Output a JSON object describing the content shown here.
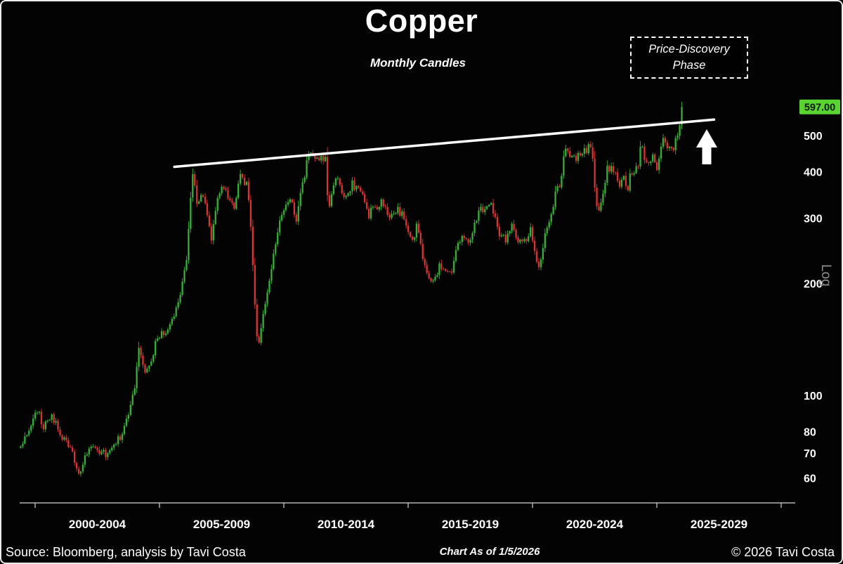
{
  "header": {
    "title": "Copper",
    "subtitle": "Monthly Candles",
    "annotation": {
      "line1": "Price-Discovery",
      "line2": "Phase"
    }
  },
  "footer": {
    "source": "Source: Bloomberg, analysis by Tavi Costa",
    "as_of": "Chart As of 1/5/2026",
    "copyright": "© 2026 Tavi Costa"
  },
  "chart_data": {
    "type": "candlestick",
    "title": "Copper",
    "subtitle": "Monthly Candles",
    "interval": "monthly",
    "scale": "log",
    "start_year": 1999.42,
    "end_year": 2026.0,
    "last_price": 597.0,
    "last_price_label": "597.00",
    "y_axis": {
      "label": "Log",
      "ticks": [
        500,
        400,
        300,
        200,
        100,
        80,
        70,
        60
      ]
    },
    "x_axis": {
      "labels": [
        "2000-2004",
        "2005-2009",
        "2010-2014",
        "2015-2019",
        "2020-2024",
        "2025-2029"
      ],
      "label_center_years": [
        2002.5,
        2007.5,
        2012.5,
        2017.5,
        2022.5,
        2027.5
      ],
      "tick_years": [
        2000,
        2005,
        2010,
        2015,
        2020,
        2025,
        2030
      ]
    },
    "trendline": {
      "from_year": 2005.6,
      "from_price": 412,
      "to_year": 2027.3,
      "to_price": 552,
      "color": "#ffffff"
    },
    "colors": {
      "up": "#35b135",
      "down": "#d93434",
      "last_price_bg": "#59d431",
      "trendline": "#ffffff"
    },
    "monthly_anchors": [
      [
        1999.42,
        73
      ],
      [
        1999.58,
        79
      ],
      [
        1999.83,
        83
      ],
      [
        2000.08,
        91
      ],
      [
        2000.33,
        83
      ],
      [
        2000.58,
        88
      ],
      [
        2000.83,
        85
      ],
      [
        2001.08,
        78
      ],
      [
        2001.33,
        74
      ],
      [
        2001.58,
        67
      ],
      [
        2001.83,
        61
      ],
      [
        2002.08,
        70
      ],
      [
        2002.33,
        73
      ],
      [
        2002.58,
        68
      ],
      [
        2002.83,
        70
      ],
      [
        2003.08,
        74
      ],
      [
        2003.33,
        76
      ],
      [
        2003.58,
        81
      ],
      [
        2003.83,
        92
      ],
      [
        2004.0,
        107
      ],
      [
        2004.17,
        133
      ],
      [
        2004.42,
        118
      ],
      [
        2004.67,
        126
      ],
      [
        2004.92,
        142
      ],
      [
        2005.17,
        148
      ],
      [
        2005.42,
        155
      ],
      [
        2005.67,
        168
      ],
      [
        2005.92,
        204
      ],
      [
        2006.08,
        228
      ],
      [
        2006.33,
        408
      ],
      [
        2006.5,
        322
      ],
      [
        2006.75,
        352
      ],
      [
        2006.92,
        305
      ],
      [
        2007.08,
        262
      ],
      [
        2007.33,
        348
      ],
      [
        2007.58,
        362
      ],
      [
        2007.83,
        326
      ],
      [
        2008.0,
        318
      ],
      [
        2008.25,
        394
      ],
      [
        2008.5,
        368
      ],
      [
        2008.67,
        292
      ],
      [
        2008.83,
        178
      ],
      [
        2008.95,
        131
      ],
      [
        2009.08,
        150
      ],
      [
        2009.33,
        188
      ],
      [
        2009.58,
        238
      ],
      [
        2009.83,
        298
      ],
      [
        2010.08,
        334
      ],
      [
        2010.25,
        342
      ],
      [
        2010.5,
        296
      ],
      [
        2010.75,
        367
      ],
      [
        2010.92,
        425
      ],
      [
        2011.08,
        448
      ],
      [
        2011.17,
        456
      ],
      [
        2011.33,
        424
      ],
      [
        2011.5,
        440
      ],
      [
        2011.67,
        428
      ],
      [
        2011.79,
        320
      ],
      [
        2011.92,
        343
      ],
      [
        2012.08,
        386
      ],
      [
        2012.33,
        356
      ],
      [
        2012.5,
        336
      ],
      [
        2012.75,
        372
      ],
      [
        2012.92,
        362
      ],
      [
        2013.17,
        342
      ],
      [
        2013.42,
        307
      ],
      [
        2013.67,
        322
      ],
      [
        2013.92,
        332
      ],
      [
        2014.08,
        318
      ],
      [
        2014.33,
        301
      ],
      [
        2014.58,
        314
      ],
      [
        2014.83,
        303
      ],
      [
        2015.0,
        281
      ],
      [
        2015.17,
        258
      ],
      [
        2015.33,
        288
      ],
      [
        2015.58,
        235
      ],
      [
        2015.83,
        210
      ],
      [
        2016.0,
        200
      ],
      [
        2016.25,
        221
      ],
      [
        2016.5,
        211
      ],
      [
        2016.75,
        217
      ],
      [
        2016.92,
        248
      ],
      [
        2017.17,
        262
      ],
      [
        2017.42,
        258
      ],
      [
        2017.67,
        292
      ],
      [
        2017.92,
        325
      ],
      [
        2018.08,
        310
      ],
      [
        2018.33,
        330
      ],
      [
        2018.5,
        298
      ],
      [
        2018.67,
        266
      ],
      [
        2018.92,
        263
      ],
      [
        2019.17,
        292
      ],
      [
        2019.42,
        263
      ],
      [
        2019.67,
        257
      ],
      [
        2019.92,
        280
      ],
      [
        2020.08,
        252
      ],
      [
        2020.25,
        216
      ],
      [
        2020.5,
        272
      ],
      [
        2020.75,
        304
      ],
      [
        2020.92,
        350
      ],
      [
        2021.08,
        368
      ],
      [
        2021.33,
        467
      ],
      [
        2021.5,
        428
      ],
      [
        2021.75,
        436
      ],
      [
        2021.92,
        440
      ],
      [
        2022.08,
        450
      ],
      [
        2022.25,
        470
      ],
      [
        2022.33,
        482
      ],
      [
        2022.5,
        374
      ],
      [
        2022.58,
        330
      ],
      [
        2022.67,
        318
      ],
      [
        2022.83,
        344
      ],
      [
        2023.0,
        412
      ],
      [
        2023.17,
        408
      ],
      [
        2023.33,
        398
      ],
      [
        2023.5,
        372
      ],
      [
        2023.67,
        384
      ],
      [
        2023.83,
        358
      ],
      [
        2023.92,
        389
      ],
      [
        2024.08,
        398
      ],
      [
        2024.25,
        418
      ],
      [
        2024.38,
        492
      ],
      [
        2024.5,
        442
      ],
      [
        2024.67,
        420
      ],
      [
        2024.83,
        438
      ],
      [
        2025.0,
        403
      ],
      [
        2025.17,
        455
      ],
      [
        2025.29,
        495
      ],
      [
        2025.42,
        452
      ],
      [
        2025.54,
        472
      ],
      [
        2025.67,
        455
      ],
      [
        2025.79,
        492
      ],
      [
        2025.92,
        538
      ],
      [
        2026.0,
        597
      ]
    ]
  }
}
